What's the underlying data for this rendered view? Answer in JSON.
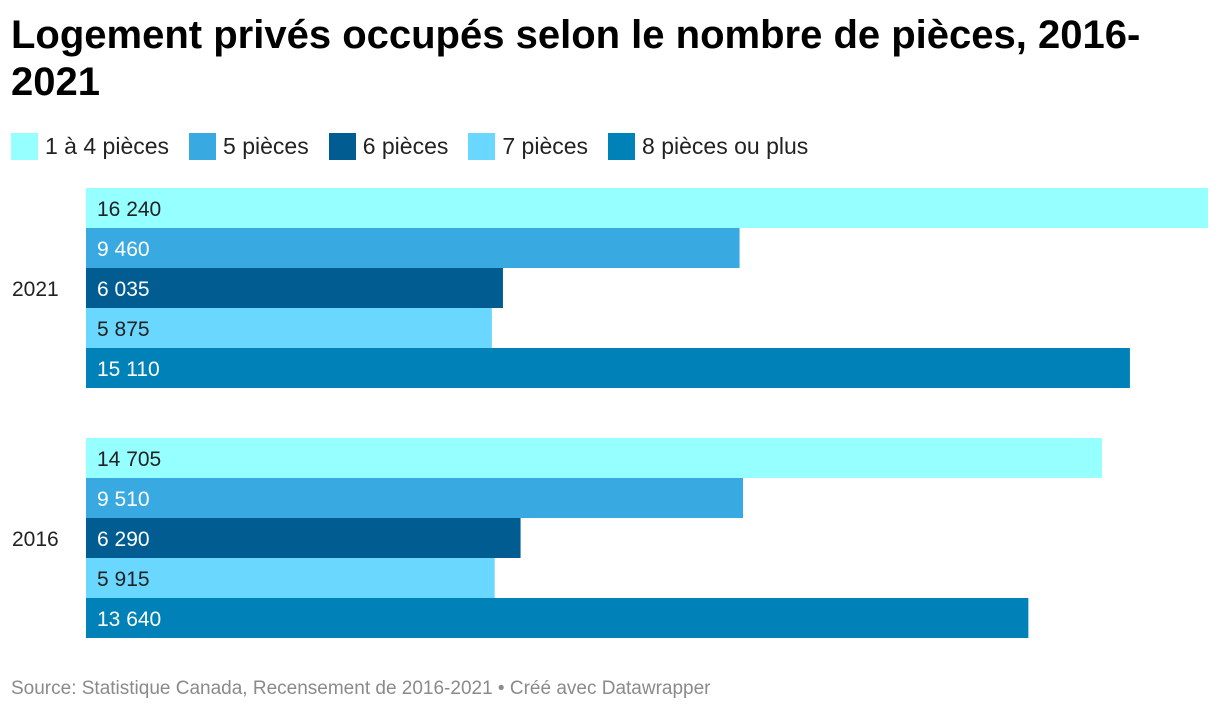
{
  "title": "Logement privés occupés selon le nombre de pièces, 2016-2021",
  "source": "Source: Statistique Canada, Recensement de 2016-2021 • Créé avec Datawrapper",
  "chart_data": {
    "type": "bar",
    "orientation": "horizontal",
    "categories": [
      "2021",
      "2016"
    ],
    "series": [
      {
        "name": "1 à 4 pièces",
        "color": "#96ffff",
        "values": [
          16240,
          14705
        ],
        "labels": [
          "16 240",
          "14 705"
        ]
      },
      {
        "name": "5 pièces",
        "color": "#39aae1",
        "values": [
          9460,
          9510
        ],
        "labels": [
          "9 460",
          "9 510"
        ]
      },
      {
        "name": "6 pièces",
        "color": "#005c91",
        "values": [
          6035,
          6290
        ],
        "labels": [
          "6 035",
          "6 290"
        ]
      },
      {
        "name": "7 pièces",
        "color": "#69d7ff",
        "values": [
          5875,
          5915
        ],
        "labels": [
          "5 875",
          "5 915"
        ]
      },
      {
        "name": "8 pièces ou plus",
        "color": "#0082b9",
        "values": [
          15110,
          13640
        ],
        "labels": [
          "15 110",
          "13 640"
        ]
      }
    ],
    "xlim": [
      0,
      16240
    ],
    "legend": "top-left",
    "grid": false
  }
}
